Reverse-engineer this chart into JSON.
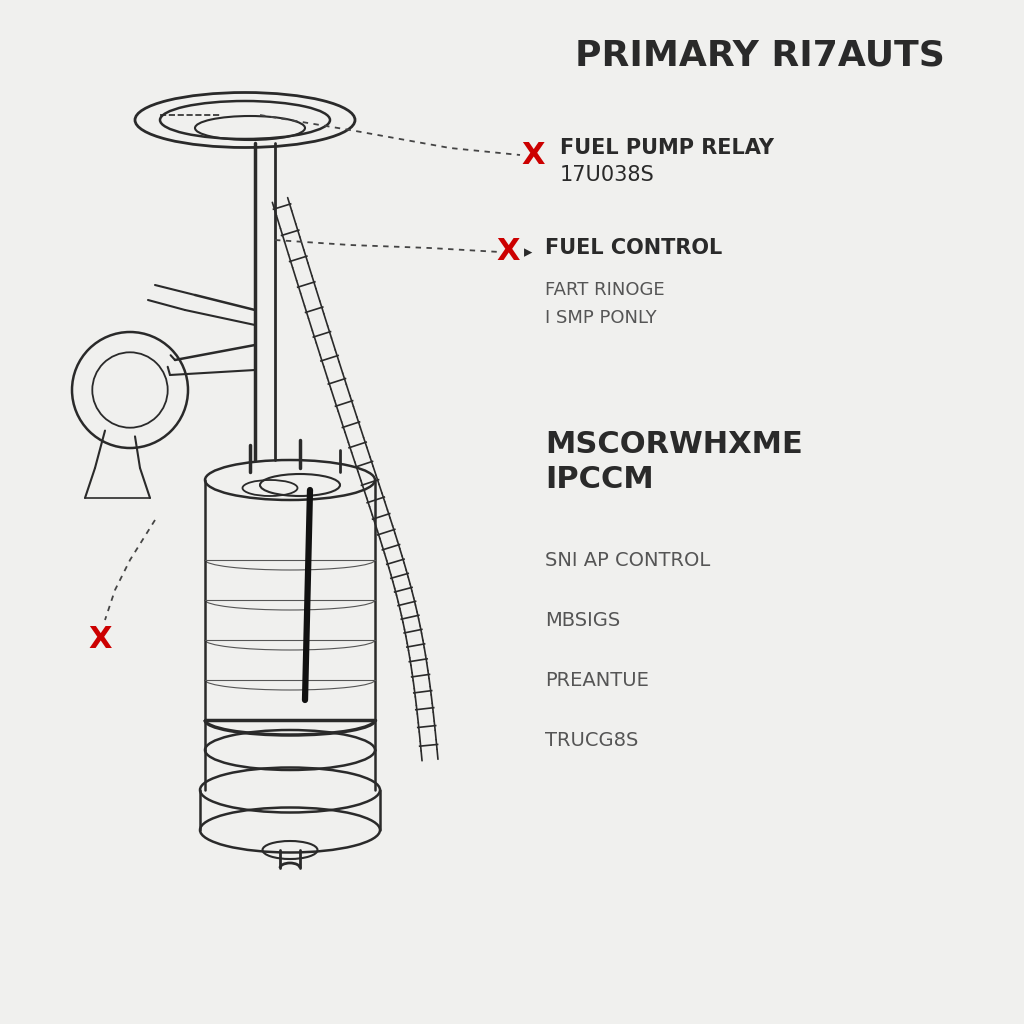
{
  "title": "PRIMARY RI7AUTS",
  "background_color": "#f0f0ee",
  "label1_line1": "FUEL PUMP RELAY",
  "label1_line2": "17U038S",
  "label2_line1": "FUEL CONTROL",
  "label2_line2": "FART RINOGE",
  "label2_line3": "I SMP PONLY",
  "label3_bold": "MSCORWHXME\nIPCCM",
  "label3_sub": [
    "SNI AP CONTROL",
    "MBSIGS",
    "PREANTUE",
    "TRUCG8S"
  ],
  "red_x_color": "#cc0000",
  "line_color": "#2a2a2a",
  "text_color": "#2a2a2a",
  "gray_text_color": "#555555"
}
